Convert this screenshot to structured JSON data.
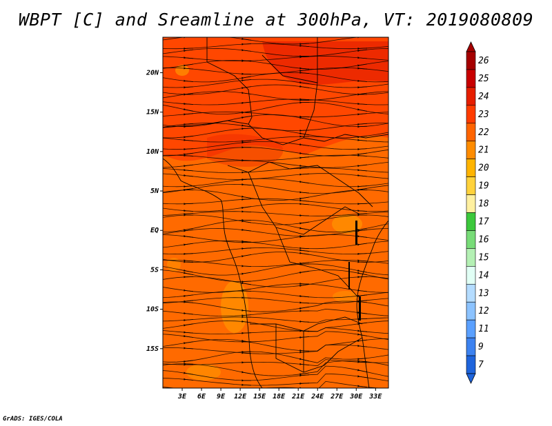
{
  "title": "WBPT [C] and Sreamline at 300hPa, VT: 2019080809",
  "credit": "GrADS: IGES/COLA",
  "map": {
    "lat_labels": [
      "20N",
      "15N",
      "10N",
      "5N",
      "EQ",
      "5S",
      "10S",
      "15S"
    ],
    "lon_labels": [
      "3E",
      "6E",
      "9E",
      "12E",
      "15E",
      "18E",
      "21E",
      "24E",
      "27E",
      "30E",
      "33E"
    ],
    "lat_range": [
      -20,
      24.5
    ],
    "lon_range": [
      0,
      35
    ],
    "background_color": "#ff6a00"
  },
  "colorbar": {
    "levels": [
      "26",
      "25",
      "24",
      "23",
      "22",
      "21",
      "20",
      "19",
      "18",
      "17",
      "16",
      "15",
      "14",
      "13",
      "12",
      "11",
      "9",
      "7"
    ],
    "colors": [
      "#a50000",
      "#c80000",
      "#e61e00",
      "#ff3c00",
      "#ff6400",
      "#ff8c00",
      "#ffb400",
      "#ffd23c",
      "#fff0a0",
      "#3cc83c",
      "#78dc78",
      "#b4f0b4",
      "#e1fff5",
      "#b4dcff",
      "#8cc3ff",
      "#5aa0ff",
      "#3c82f0",
      "#1e64dc"
    ]
  }
}
